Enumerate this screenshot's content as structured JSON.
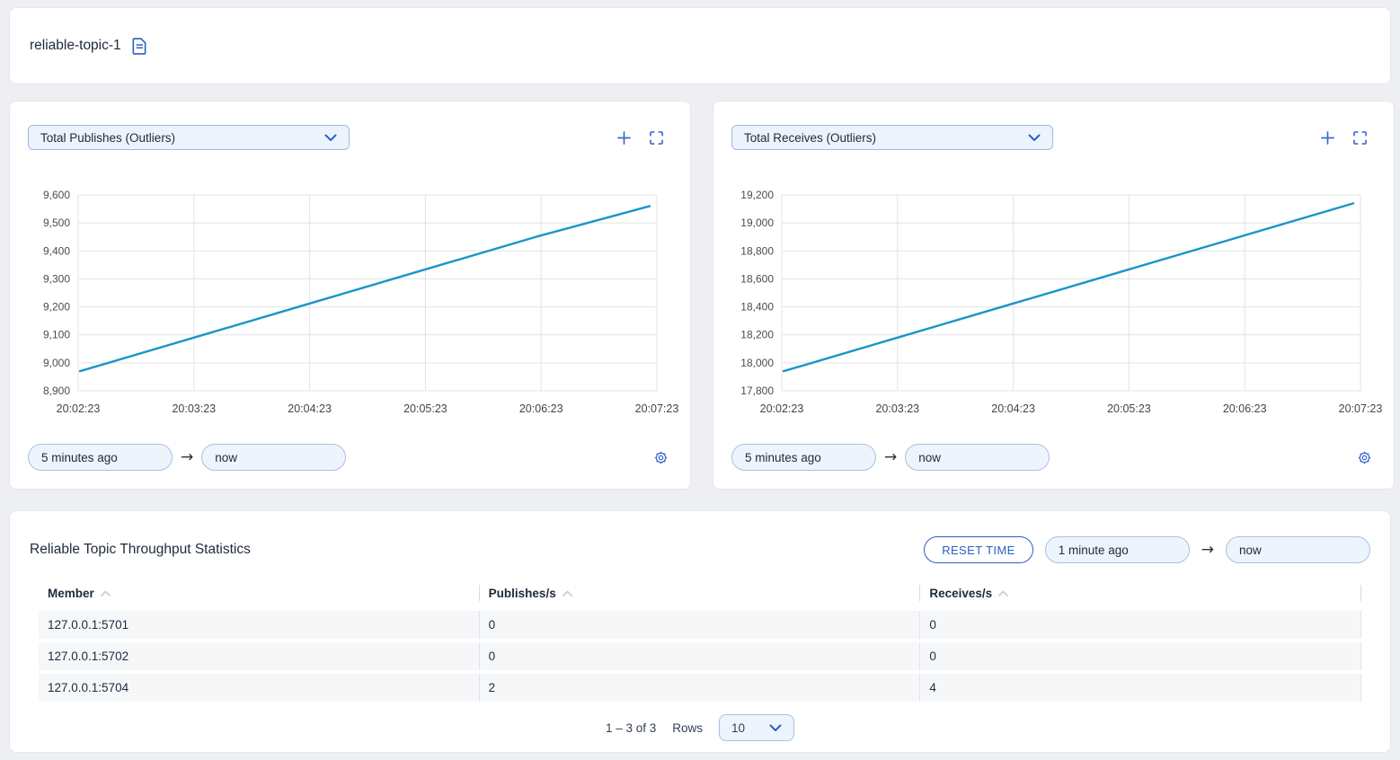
{
  "header": {
    "title": "reliable-topic-1"
  },
  "chart_cards": [
    {
      "from": "5 minutes ago",
      "to": "now"
    },
    {
      "from": "5 minutes ago",
      "to": "now"
    }
  ],
  "chart_data": [
    {
      "type": "line",
      "title": "Total Publishes (Outliers)",
      "x": [
        "20:02:23",
        "20:03:23",
        "20:04:23",
        "20:05:23",
        "20:06:23",
        "20:07:23"
      ],
      "values": [
        8970,
        9090,
        9210,
        9330,
        9450,
        9560
      ],
      "ylim": [
        8900,
        9600
      ],
      "ytick_step": 100,
      "xlabel": "",
      "ylabel": "",
      "grid": true,
      "legend": "none"
    },
    {
      "type": "line",
      "title": "Total Receives (Outliers)",
      "x": [
        "20:02:23",
        "20:03:23",
        "20:04:23",
        "20:05:23",
        "20:06:23",
        "20:07:23"
      ],
      "values": [
        17940,
        18180,
        18420,
        18660,
        18900,
        19140
      ],
      "ylim": [
        17800,
        19200
      ],
      "ytick_step": 200,
      "xlabel": "",
      "ylabel": "",
      "grid": true,
      "legend": "none"
    }
  ],
  "stats_card": {
    "title": "Reliable Topic Throughput Statistics",
    "reset_button_label": "RESET TIME",
    "from": "1 minute ago",
    "to": "now",
    "columns": [
      "Member",
      "Publishes/s",
      "Receives/s"
    ],
    "rows": [
      [
        "127.0.0.1:5701",
        "0",
        "0"
      ],
      [
        "127.0.0.1:5702",
        "0",
        "0"
      ],
      [
        "127.0.0.1:5704",
        "2",
        "4"
      ]
    ],
    "pagination": {
      "range": "1 – 3 of 3",
      "rows_label": "Rows",
      "page_size": "10"
    }
  },
  "colors": {
    "accent": "#2a5fc7",
    "icon_blue": "#3b6ac9",
    "line": "#1a95c8",
    "grid": "#e3e3e3",
    "tick_text": "#4c4c4c"
  }
}
